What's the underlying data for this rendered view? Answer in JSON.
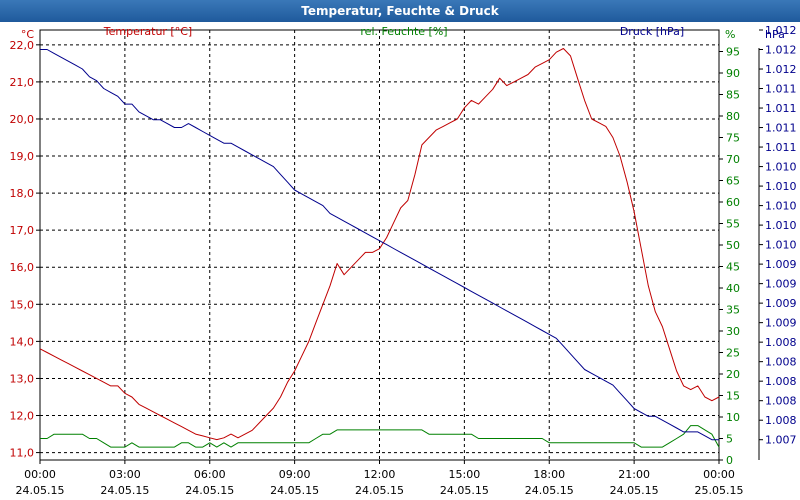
{
  "window": {
    "title": "Temperatur, Feuchte & Druck"
  },
  "colors": {
    "temperature": "#c00000",
    "humidity": "#008000",
    "pressure": "#00008c",
    "grid": "#000000"
  },
  "chart_data": {
    "type": "line",
    "title": "Temperatur, Feuchte & Druck",
    "x_ticks": [
      {
        "time": "00:00",
        "date": "24.05.15"
      },
      {
        "time": "03:00",
        "date": "24.05.15"
      },
      {
        "time": "06:00",
        "date": "24.05.15"
      },
      {
        "time": "09:00",
        "date": "24.05.15"
      },
      {
        "time": "12:00",
        "date": "24.05.15"
      },
      {
        "time": "15:00",
        "date": "24.05.15"
      },
      {
        "time": "18:00",
        "date": "24.05.15"
      },
      {
        "time": "21:00",
        "date": "24.05.15"
      },
      {
        "time": "00:00",
        "date": "25.05.15"
      }
    ],
    "xlim": [
      0,
      24
    ],
    "axes": {
      "left": {
        "unit": "°C",
        "series_label": "Temperatur [°C]",
        "ylim": [
          10.8,
          22.4
        ],
        "ticks": [
          "11,0",
          "12,0",
          "13,0",
          "14,0",
          "15,0",
          "16,0",
          "17,0",
          "18,0",
          "19,0",
          "20,0",
          "21,0",
          "22,0"
        ]
      },
      "mid": {
        "unit": "%",
        "series_label": "rel. Feuchte [%]",
        "ylim": [
          0,
          100
        ],
        "ticks": [
          "0",
          "5",
          "10",
          "15",
          "20",
          "25",
          "30",
          "35",
          "40",
          "45",
          "50",
          "55",
          "60",
          "65",
          "70",
          "75",
          "80",
          "85",
          "90",
          "95"
        ]
      },
      "right": {
        "unit": "hPa",
        "series_label": "Druck [hPa]",
        "ylim": [
          1006.74,
          1012.25
        ],
        "ticks": [
          "1.007",
          "1.008",
          "1.008",
          "1.008",
          "1.008",
          "1.008",
          "1.009",
          "1.009",
          "1.009",
          "1.009",
          "1.010",
          "1.010",
          "1.010",
          "1.010",
          "1.010",
          "1.011",
          "1.011",
          "1.011",
          "1.011",
          "1.012",
          "1.012",
          "1.012"
        ]
      }
    },
    "series": [
      {
        "name": "Temperatur",
        "unit": "°C",
        "axis": "left",
        "x_step": 0.25,
        "values": [
          13.8,
          13.7,
          13.6,
          13.5,
          13.4,
          13.3,
          13.2,
          13.1,
          13.0,
          12.9,
          12.8,
          12.8,
          12.6,
          12.5,
          12.3,
          12.2,
          12.1,
          12.0,
          11.9,
          11.8,
          11.7,
          11.6,
          11.5,
          11.45,
          11.4,
          11.35,
          11.4,
          11.5,
          11.4,
          11.5,
          11.6,
          11.8,
          12.0,
          12.2,
          12.5,
          12.9,
          13.2,
          13.6,
          14.0,
          14.5,
          15.0,
          15.5,
          16.1,
          15.8,
          16.0,
          16.2,
          16.4,
          16.4,
          16.5,
          16.8,
          17.2,
          17.6,
          17.8,
          18.5,
          19.3,
          19.5,
          19.7,
          19.8,
          19.9,
          20.0,
          20.3,
          20.5,
          20.4,
          20.6,
          20.8,
          21.1,
          20.9,
          21.0,
          21.1,
          21.2,
          21.4,
          21.5,
          21.6,
          21.8,
          21.9,
          21.7,
          21.1,
          20.5,
          20.0,
          19.9,
          19.8,
          19.5,
          19.0,
          18.3,
          17.5,
          16.5,
          15.5,
          14.8,
          14.4,
          13.8,
          13.2,
          12.8,
          12.7,
          12.8,
          12.5,
          12.4,
          12.5
        ]
      },
      {
        "name": "rel. Feuchte",
        "unit": "%",
        "axis": "mid",
        "x_step": 0.25,
        "values": [
          5,
          5,
          6,
          6,
          6,
          6,
          6,
          5,
          5,
          4,
          3,
          3,
          3,
          4,
          3,
          3,
          3,
          3,
          3,
          3,
          4,
          4,
          3,
          3,
          4,
          3,
          4,
          3,
          4,
          4,
          4,
          4,
          4,
          4,
          4,
          4,
          4,
          4,
          4,
          5,
          6,
          6,
          7,
          7,
          7,
          7,
          7,
          7,
          7,
          7,
          7,
          7,
          7,
          7,
          7,
          6,
          6,
          6,
          6,
          6,
          6,
          6,
          5,
          5,
          5,
          5,
          5,
          5,
          5,
          5,
          5,
          5,
          4,
          4,
          4,
          4,
          4,
          4,
          4,
          4,
          4,
          4,
          4,
          4,
          4,
          3,
          3,
          3,
          3,
          4,
          5,
          6,
          8,
          8,
          7,
          6,
          3
        ]
      },
      {
        "name": "Druck",
        "unit": "hPa",
        "axis": "right",
        "x_step": 0.25,
        "values": [
          1012.0,
          1012.0,
          1011.95,
          1011.9,
          1011.85,
          1011.8,
          1011.75,
          1011.65,
          1011.6,
          1011.5,
          1011.45,
          1011.4,
          1011.3,
          1011.3,
          1011.2,
          1011.15,
          1011.1,
          1011.1,
          1011.05,
          1011.0,
          1011.0,
          1011.05,
          1011.0,
          1010.95,
          1010.9,
          1010.85,
          1010.8,
          1010.8,
          1010.75,
          1010.7,
          1010.65,
          1010.6,
          1010.55,
          1010.5,
          1010.4,
          1010.3,
          1010.2,
          1010.15,
          1010.1,
          1010.05,
          1010.0,
          1009.9,
          1009.85,
          1009.8,
          1009.75,
          1009.7,
          1009.65,
          1009.6,
          1009.55,
          1009.5,
          1009.45,
          1009.4,
          1009.35,
          1009.3,
          1009.25,
          1009.2,
          1009.15,
          1009.1,
          1009.05,
          1009.0,
          1008.95,
          1008.9,
          1008.85,
          1008.8,
          1008.75,
          1008.7,
          1008.65,
          1008.6,
          1008.55,
          1008.5,
          1008.45,
          1008.4,
          1008.35,
          1008.3,
          1008.2,
          1008.1,
          1008.0,
          1007.9,
          1007.85,
          1007.8,
          1007.75,
          1007.7,
          1007.6,
          1007.5,
          1007.4,
          1007.35,
          1007.3,
          1007.3,
          1007.25,
          1007.2,
          1007.15,
          1007.1,
          1007.1,
          1007.1,
          1007.05,
          1007.0,
          1007.0
        ]
      }
    ]
  }
}
